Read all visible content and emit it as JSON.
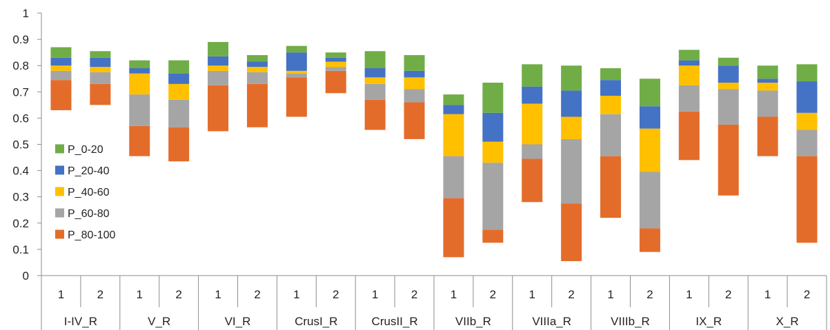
{
  "chart_data": {
    "type": "bar",
    "stacked": true,
    "title": "",
    "xlabel": "",
    "ylabel": "",
    "ylim": [
      0,
      1
    ],
    "yticks": [
      "0",
      "0.1",
      "0.2",
      "0.3",
      "0.4",
      "0.5",
      "0.6",
      "0.7",
      "0.8",
      "0.9",
      "1"
    ],
    "grid": false,
    "legend_position": "left-middle",
    "groups": [
      "I-IV_R",
      "V_R",
      "VI_R",
      "CrusI_R",
      "CrusII_R",
      "VIIb_R",
      "VIIIa_R",
      "VIIIb_R",
      "IX_R",
      "X_R"
    ],
    "sub_categories": [
      "1",
      "2"
    ],
    "base": [
      0.63,
      0.65,
      0.455,
      0.435,
      0.55,
      0.565,
      0.605,
      0.695,
      0.555,
      0.52,
      0.07,
      0.125,
      0.28,
      0.055,
      0.22,
      0.09,
      0.44,
      0.305,
      0.455,
      0.125
    ],
    "series": [
      {
        "name": "P_80-100",
        "color": "#E46C2A",
        "values": [
          0.115,
          0.08,
          0.115,
          0.13,
          0.175,
          0.165,
          0.15,
          0.085,
          0.115,
          0.14,
          0.225,
          0.05,
          0.165,
          0.22,
          0.235,
          0.09,
          0.185,
          0.27,
          0.15,
          0.33
        ]
      },
      {
        "name": "P_60-80",
        "color": "#A5A5A5",
        "values": [
          0.035,
          0.045,
          0.12,
          0.105,
          0.055,
          0.045,
          0.015,
          0.015,
          0.06,
          0.05,
          0.16,
          0.255,
          0.055,
          0.245,
          0.16,
          0.215,
          0.1,
          0.135,
          0.1,
          0.1
        ]
      },
      {
        "name": "P_40-60",
        "color": "#FFC000",
        "values": [
          0.02,
          0.02,
          0.08,
          0.06,
          0.02,
          0.02,
          0.01,
          0.02,
          0.025,
          0.045,
          0.16,
          0.08,
          0.155,
          0.085,
          0.07,
          0.165,
          0.075,
          0.025,
          0.03,
          0.065
        ]
      },
      {
        "name": "P_20-40",
        "color": "#4472C4",
        "values": [
          0.03,
          0.035,
          0.02,
          0.04,
          0.035,
          0.02,
          0.07,
          0.015,
          0.035,
          0.025,
          0.035,
          0.11,
          0.065,
          0.1,
          0.06,
          0.085,
          0.02,
          0.065,
          0.015,
          0.12
        ]
      },
      {
        "name": "P_0-20",
        "color": "#70AD47",
        "values": [
          0.04,
          0.025,
          0.03,
          0.05,
          0.055,
          0.025,
          0.025,
          0.02,
          0.065,
          0.06,
          0.04,
          0.115,
          0.085,
          0.095,
          0.045,
          0.105,
          0.04,
          0.03,
          0.05,
          0.065
        ]
      }
    ],
    "legend": [
      {
        "name": "P_0-20",
        "color": "#70AD47"
      },
      {
        "name": "P_20-40",
        "color": "#4472C4"
      },
      {
        "name": "P_40-60",
        "color": "#FFC000"
      },
      {
        "name": "P_60-80",
        "color": "#A5A5A5"
      },
      {
        "name": "P_80-100",
        "color": "#E46C2A"
      }
    ]
  }
}
